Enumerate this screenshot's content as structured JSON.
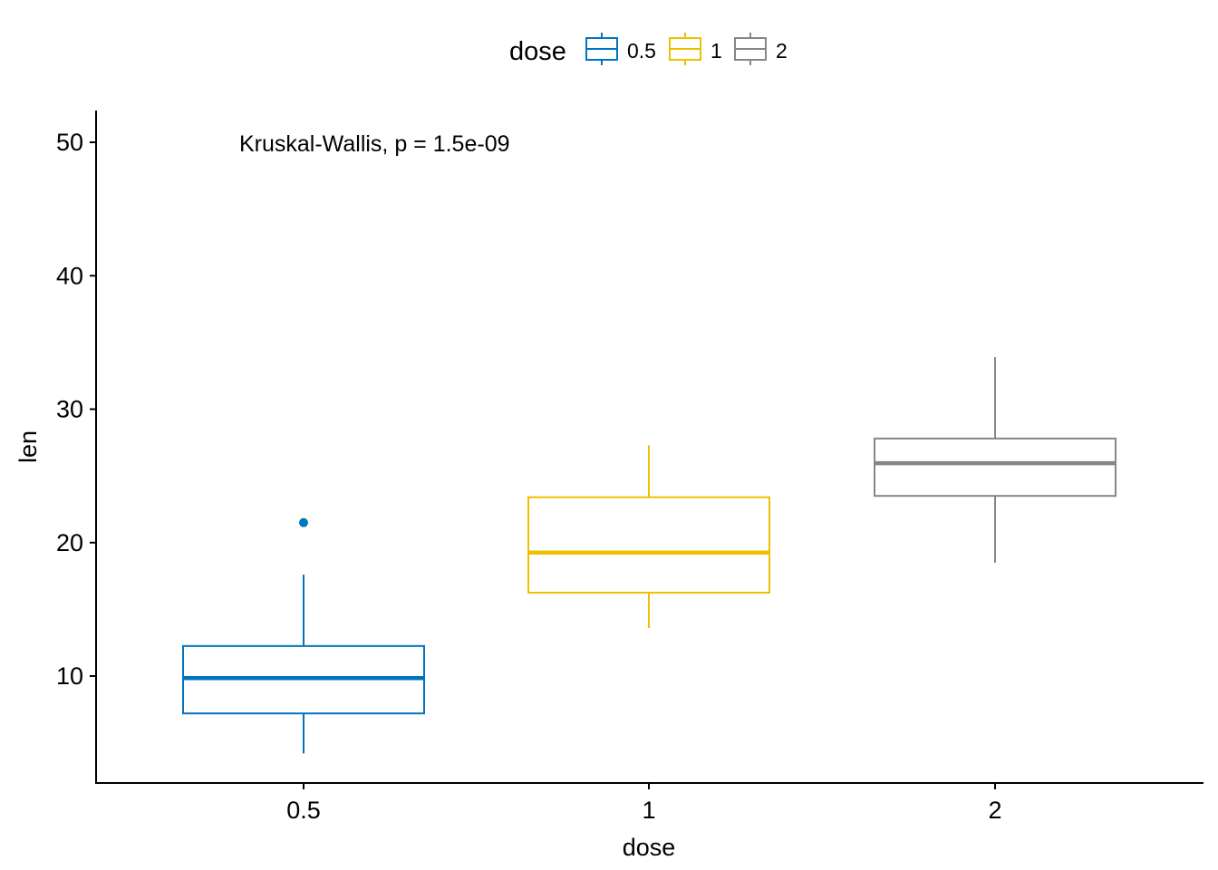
{
  "chart_data": {
    "type": "boxplot",
    "title": "",
    "xlabel": "dose",
    "ylabel": "len",
    "categories": [
      "0.5",
      "1",
      "2"
    ],
    "ylim": [
      2.5,
      52.5
    ],
    "yticks": [
      10,
      20,
      30,
      40,
      50
    ],
    "grid": false,
    "legend": {
      "title": "dose",
      "position": "top",
      "entries": [
        "0.5",
        "1",
        "2"
      ]
    },
    "annotation": "Kruskal-Wallis, p = 1.5e-09",
    "series": [
      {
        "category": "0.5",
        "min": 4.2,
        "q1": 7.2,
        "median": 9.85,
        "q3": 12.25,
        "max": 17.6,
        "outliers": [
          21.5
        ],
        "color": "#0073C2"
      },
      {
        "category": "1",
        "min": 13.6,
        "q1": 16.25,
        "median": 19.25,
        "q3": 23.4,
        "max": 27.3,
        "outliers": [],
        "color": "#EFC000"
      },
      {
        "category": "2",
        "min": 18.5,
        "q1": 23.5,
        "median": 25.95,
        "q3": 27.8,
        "max": 33.9,
        "outliers": [],
        "color": "#868686"
      }
    ]
  }
}
